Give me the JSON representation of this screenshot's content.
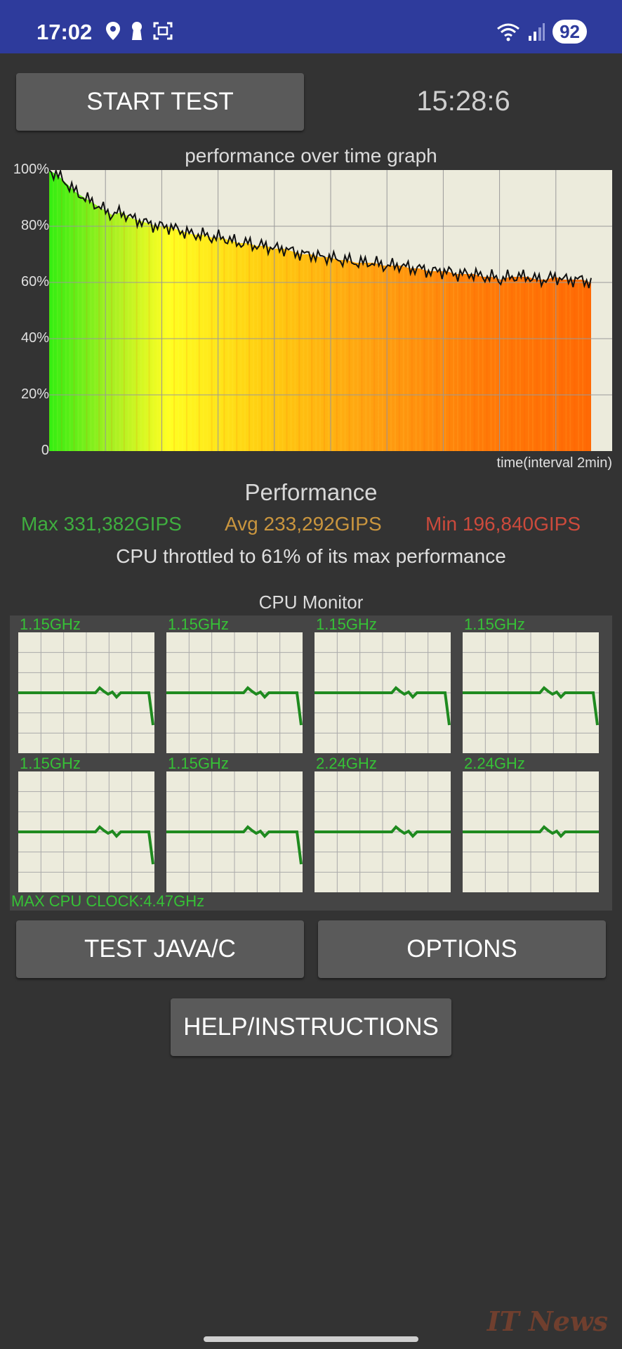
{
  "status_bar": {
    "time": "17:02",
    "battery": "92",
    "icons_left": [
      "location-icon",
      "keyhole-icon",
      "screenshot-icon"
    ],
    "icons_right": [
      "wifi-icon",
      "signal-icon"
    ]
  },
  "controls": {
    "start_test": "START TEST",
    "timer": "15:28:6",
    "test_java_c": "TEST JAVA/C",
    "options": "OPTIONS",
    "help": "HELP/INSTRUCTIONS"
  },
  "performance": {
    "graph_title": "performance over time graph",
    "time_label": "time(interval 2min)",
    "heading": "Performance",
    "max": "Max 331,382GIPS",
    "avg": "Avg 233,292GIPS",
    "min": "Min 196,840GIPS",
    "throttle_text": "CPU throttled to 61% of its max performance",
    "colors": {
      "max": "#3fae3f",
      "avg": "#c9953e",
      "min": "#cc4a3c"
    }
  },
  "chart_data": {
    "type": "area",
    "title": "performance over time graph",
    "xlabel": "time(interval 2min)",
    "ylabel": "",
    "y_ticks": [
      "100%",
      "80%",
      "60%",
      "40%",
      "20%",
      "0"
    ],
    "ylim": [
      0,
      100
    ],
    "x": [
      0,
      1,
      2,
      3,
      4,
      5,
      6,
      7,
      8,
      9,
      10,
      11,
      12,
      13,
      14,
      15,
      16,
      17,
      18,
      19,
      20,
      21,
      22,
      23,
      24,
      25,
      26,
      27,
      28,
      29,
      30,
      31,
      32,
      33,
      34,
      35,
      36,
      37,
      38,
      39,
      40,
      41,
      42,
      43,
      44,
      45,
      46,
      47,
      48,
      49,
      50,
      51,
      52,
      53,
      54,
      55,
      56,
      57,
      58,
      59,
      60
    ],
    "series": [
      {
        "values": [
          100,
          98,
          95,
          92,
          90,
          88,
          86,
          84,
          85,
          83,
          82,
          81,
          80,
          80,
          79,
          78,
          77,
          77,
          76,
          76,
          75,
          74,
          74,
          73,
          73,
          72,
          72,
          71,
          70,
          70,
          69,
          69,
          68,
          68,
          67,
          67,
          67,
          66,
          66,
          66,
          65,
          65,
          64,
          64,
          64,
          63,
          63,
          63,
          62,
          62,
          61,
          62,
          62,
          62,
          61,
          61,
          62,
          61,
          61,
          61,
          60
        ]
      }
    ],
    "grid": true
  },
  "cpu_monitor": {
    "title": "CPU Monitor",
    "max_clock": "MAX CPU CLOCK:4.47GHz",
    "cores": [
      {
        "freq": "1.15GHz",
        "drop_at_end": true
      },
      {
        "freq": "1.15GHz",
        "drop_at_end": true
      },
      {
        "freq": "1.15GHz",
        "drop_at_end": true
      },
      {
        "freq": "1.15GHz",
        "drop_at_end": true
      },
      {
        "freq": "1.15GHz",
        "drop_at_end": true
      },
      {
        "freq": "1.15GHz",
        "drop_at_end": true
      },
      {
        "freq": "2.24GHz",
        "drop_at_end": false
      },
      {
        "freq": "2.24GHz",
        "drop_at_end": false
      }
    ]
  },
  "watermark": "IT News"
}
